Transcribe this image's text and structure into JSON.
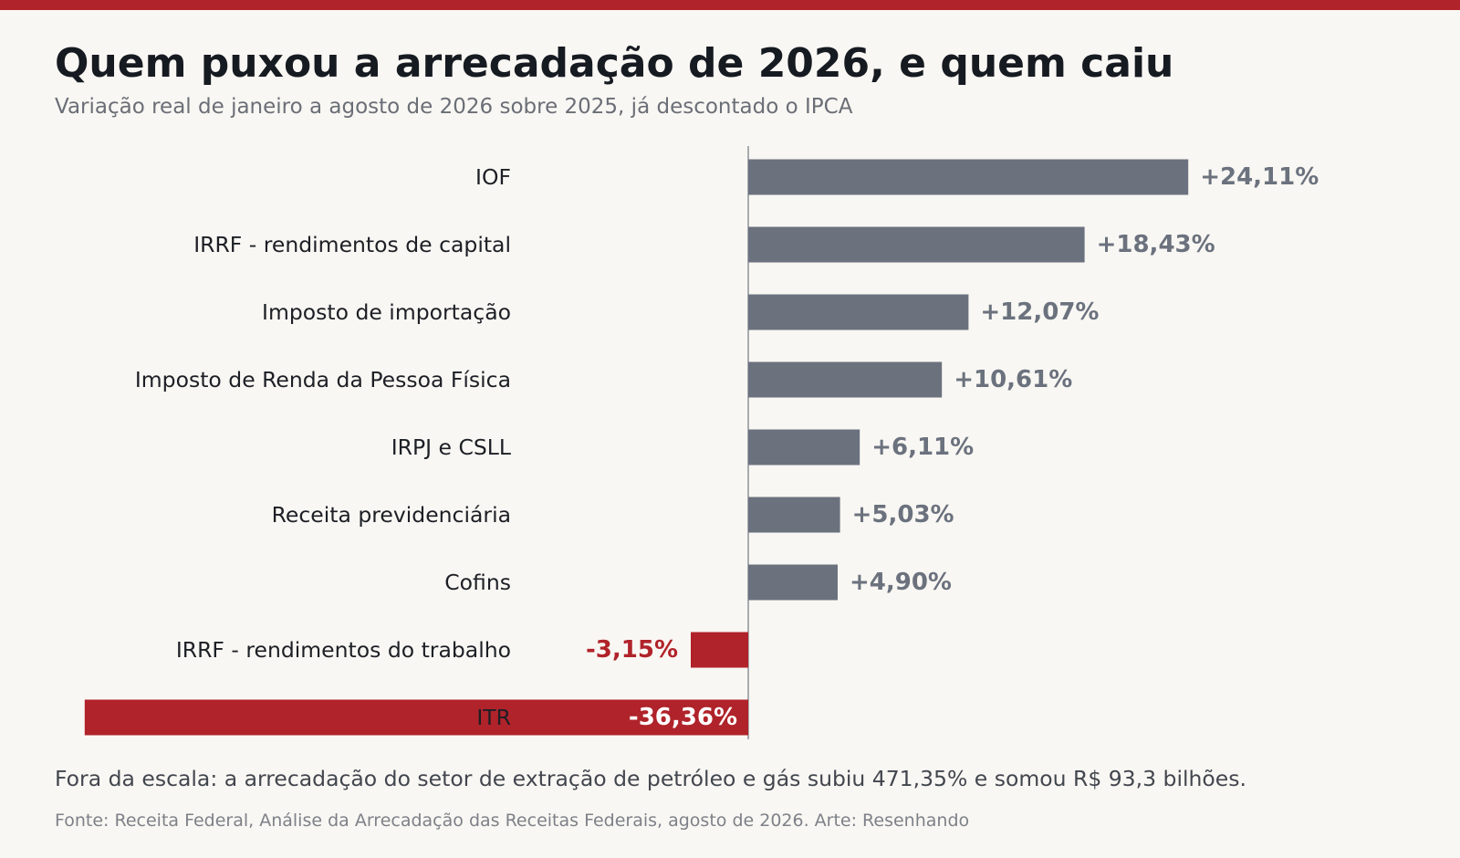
{
  "header": {
    "title": "Quem puxou a arrecadação de 2026, e quem caiu",
    "subtitle": "Variação real de janeiro a agosto de 2026 sobre 2025, já descontado o IPCA"
  },
  "chart_data": {
    "type": "bar",
    "orientation": "horizontal",
    "title": "Quem puxou a arrecadação de 2026, e quem caiu",
    "subtitle": "Variação real de janeiro a agosto de 2026 sobre 2025, já descontado o IPCA",
    "xlabel": "",
    "ylabel": "",
    "unit": "%",
    "categories": [
      "IOF",
      "IRRF - rendimentos de capital",
      "Imposto de importação",
      "Imposto de Renda da Pessoa Física",
      "IRPJ e CSLL",
      "Receita previdenciária",
      "Cofins",
      "IRRF - rendimentos do trabalho",
      "ITR"
    ],
    "values": [
      24.11,
      18.43,
      12.07,
      10.61,
      6.11,
      5.03,
      4.9,
      -3.15,
      -36.36
    ],
    "value_labels": [
      "+24,11%",
      "+18,43%",
      "+12,07%",
      "+10,61%",
      "+6,11%",
      "+5,03%",
      "+4,90%",
      "-3,15%",
      "-36,36%"
    ],
    "grid": false,
    "legend": "none",
    "colors": {
      "positive": "#6b727e",
      "negative": "#b0232a",
      "baseline": "#8d929a",
      "label_inside": "#ffffff"
    }
  },
  "footer": {
    "note": "Fora da escala: a arrecadação do setor de extração de petróleo e gás subiu 471,35% e somou R$ 93,3 bilhões.",
    "source": "Fonte: Receita Federal, Análise da Arrecadação das Receitas Federais, agosto de 2026.  Arte: Resenhando"
  }
}
